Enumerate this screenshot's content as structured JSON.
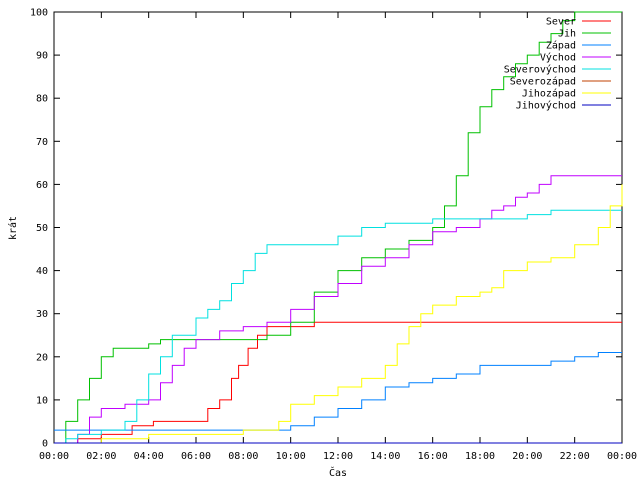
{
  "chart_data": {
    "type": "line",
    "title": "",
    "xlabel": "Čas",
    "ylabel": "krát",
    "x_ticks": [
      "00:00",
      "02:00",
      "04:00",
      "06:00",
      "08:00",
      "10:00",
      "12:00",
      "14:00",
      "16:00",
      "18:00",
      "20:00",
      "22:00",
      "00:00"
    ],
    "x_range_hours": [
      0,
      24
    ],
    "ylim": [
      0,
      100
    ],
    "y_ticks": [
      0,
      10,
      20,
      30,
      40,
      50,
      60,
      70,
      80,
      90,
      100
    ],
    "legend_position": "top-right",
    "series": [
      {
        "name": "Sever",
        "color": "#ff0000",
        "points": [
          [
            0,
            0
          ],
          [
            1,
            1
          ],
          [
            2,
            2
          ],
          [
            3.3,
            4
          ],
          [
            4.2,
            5
          ],
          [
            5.2,
            5
          ],
          [
            6.2,
            5
          ],
          [
            6.5,
            8
          ],
          [
            7,
            10
          ],
          [
            7.5,
            15
          ],
          [
            7.8,
            18
          ],
          [
            8.2,
            22
          ],
          [
            8.6,
            25
          ],
          [
            9,
            27
          ],
          [
            10,
            27
          ],
          [
            11,
            28
          ],
          [
            12,
            28
          ],
          [
            13,
            28
          ],
          [
            16,
            28
          ],
          [
            24,
            28
          ]
        ]
      },
      {
        "name": "Jih",
        "color": "#00c000",
        "points": [
          [
            0,
            0
          ],
          [
            0.5,
            5
          ],
          [
            1,
            10
          ],
          [
            1.5,
            15
          ],
          [
            2,
            20
          ],
          [
            2.5,
            22
          ],
          [
            4,
            23
          ],
          [
            4.5,
            24
          ],
          [
            6,
            24
          ],
          [
            8,
            24
          ],
          [
            9,
            25
          ],
          [
            10,
            28
          ],
          [
            11,
            35
          ],
          [
            12,
            40
          ],
          [
            13,
            43
          ],
          [
            14,
            45
          ],
          [
            15,
            47
          ],
          [
            16,
            50
          ],
          [
            16.5,
            55
          ],
          [
            17,
            62
          ],
          [
            17.5,
            72
          ],
          [
            18,
            78
          ],
          [
            18.5,
            82
          ],
          [
            19,
            85
          ],
          [
            19.5,
            88
          ],
          [
            20,
            90
          ],
          [
            20.5,
            93
          ],
          [
            21,
            95
          ],
          [
            21.5,
            98
          ],
          [
            22,
            100
          ],
          [
            24,
            100
          ]
        ]
      },
      {
        "name": "Západ",
        "color": "#0080ff",
        "points": [
          [
            0,
            3
          ],
          [
            2,
            3
          ],
          [
            4,
            3
          ],
          [
            6,
            3
          ],
          [
            8,
            3
          ],
          [
            10,
            4
          ],
          [
            11,
            6
          ],
          [
            12,
            8
          ],
          [
            13,
            10
          ],
          [
            14,
            13
          ],
          [
            15,
            14
          ],
          [
            16,
            15
          ],
          [
            17,
            16
          ],
          [
            18,
            18
          ],
          [
            19,
            18
          ],
          [
            20,
            18
          ],
          [
            21,
            19
          ],
          [
            22,
            20
          ],
          [
            23,
            21
          ],
          [
            24,
            21
          ]
        ]
      },
      {
        "name": "Východ",
        "color": "#c000ff",
        "points": [
          [
            0,
            0
          ],
          [
            1,
            2
          ],
          [
            1.5,
            6
          ],
          [
            2,
            8
          ],
          [
            3,
            9
          ],
          [
            4,
            10
          ],
          [
            4.5,
            14
          ],
          [
            5,
            18
          ],
          [
            5.5,
            22
          ],
          [
            6,
            24
          ],
          [
            7,
            26
          ],
          [
            8,
            27
          ],
          [
            9,
            28
          ],
          [
            10,
            31
          ],
          [
            11,
            34
          ],
          [
            12,
            37
          ],
          [
            13,
            41
          ],
          [
            14,
            43
          ],
          [
            15,
            46
          ],
          [
            16,
            49
          ],
          [
            17,
            50
          ],
          [
            18,
            52
          ],
          [
            18.5,
            54
          ],
          [
            19,
            55
          ],
          [
            19.5,
            57
          ],
          [
            20,
            58
          ],
          [
            20.5,
            60
          ],
          [
            21,
            62
          ],
          [
            24,
            62
          ]
        ]
      },
      {
        "name": "Severovýchod",
        "color": "#00e0e0",
        "points": [
          [
            0,
            0
          ],
          [
            0.5,
            1
          ],
          [
            1,
            2
          ],
          [
            2,
            3
          ],
          [
            3,
            5
          ],
          [
            3.5,
            10
          ],
          [
            4,
            16
          ],
          [
            4.5,
            20
          ],
          [
            5,
            25
          ],
          [
            6,
            29
          ],
          [
            6.5,
            31
          ],
          [
            7,
            33
          ],
          [
            7.5,
            37
          ],
          [
            8,
            40
          ],
          [
            8.5,
            44
          ],
          [
            9,
            46
          ],
          [
            10,
            46
          ],
          [
            11,
            46
          ],
          [
            12,
            48
          ],
          [
            13,
            50
          ],
          [
            14,
            51
          ],
          [
            15,
            51
          ],
          [
            16,
            52
          ],
          [
            17,
            52
          ],
          [
            18,
            52
          ],
          [
            19,
            52
          ],
          [
            20,
            53
          ],
          [
            21,
            54
          ],
          [
            24,
            54
          ]
        ]
      },
      {
        "name": "Severozápad",
        "color": "#c04000",
        "points": [
          [
            0,
            0
          ],
          [
            24,
            0
          ]
        ]
      },
      {
        "name": "Jihozápad",
        "color": "#ffff00",
        "points": [
          [
            0,
            0
          ],
          [
            2,
            1
          ],
          [
            4,
            2
          ],
          [
            6,
            2
          ],
          [
            8,
            3
          ],
          [
            9,
            3
          ],
          [
            9.5,
            5
          ],
          [
            10,
            9
          ],
          [
            11,
            11
          ],
          [
            12,
            13
          ],
          [
            13,
            15
          ],
          [
            14,
            18
          ],
          [
            14.5,
            23
          ],
          [
            15,
            27
          ],
          [
            15.5,
            30
          ],
          [
            16,
            32
          ],
          [
            17,
            34
          ],
          [
            18,
            35
          ],
          [
            18.5,
            36
          ],
          [
            19,
            40
          ],
          [
            20,
            42
          ],
          [
            21,
            43
          ],
          [
            22,
            46
          ],
          [
            23,
            50
          ],
          [
            23.5,
            55
          ],
          [
            24,
            60
          ]
        ]
      },
      {
        "name": "Jihovýchod",
        "color": "#0000c0",
        "points": [
          [
            0,
            0
          ],
          [
            24,
            0
          ]
        ]
      }
    ]
  }
}
